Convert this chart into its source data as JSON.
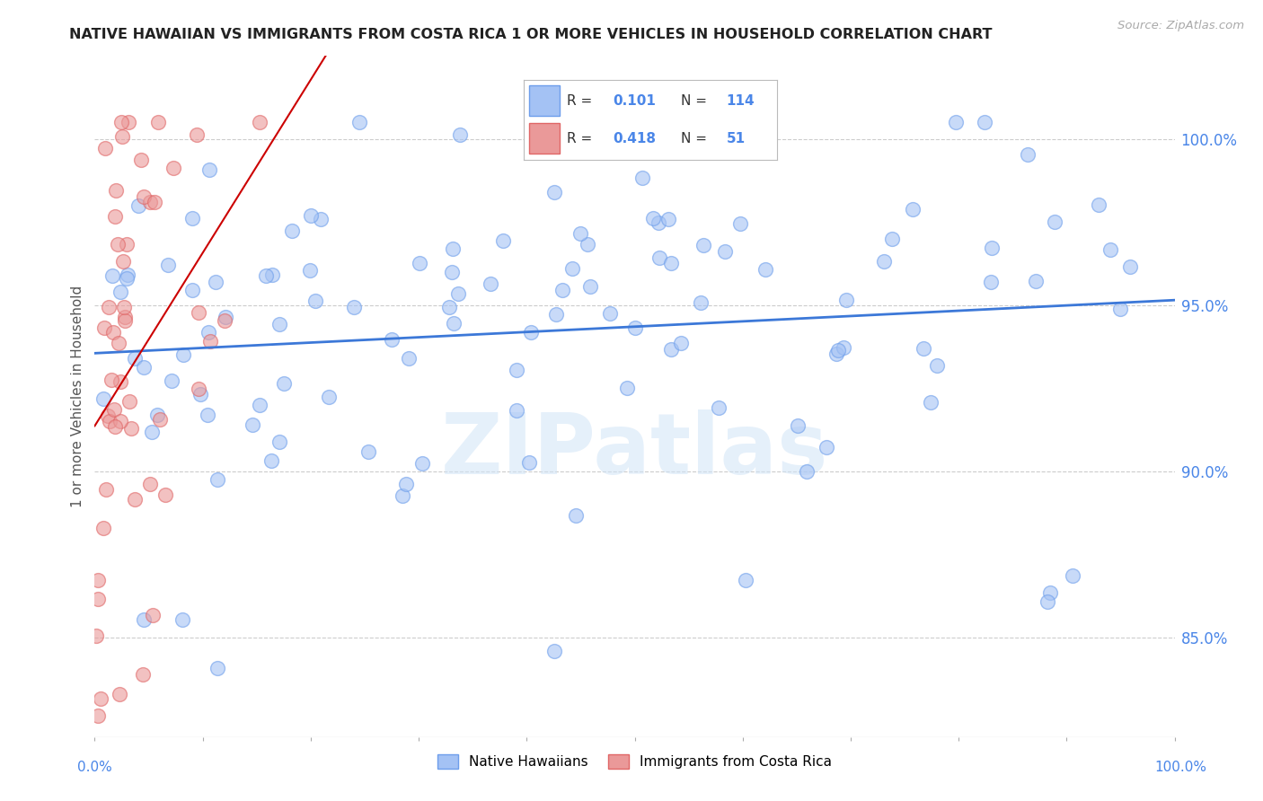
{
  "title": "NATIVE HAWAIIAN VS IMMIGRANTS FROM COSTA RICA 1 OR MORE VEHICLES IN HOUSEHOLD CORRELATION CHART",
  "source": "Source: ZipAtlas.com",
  "ylabel": "1 or more Vehicles in Household",
  "xlim": [
    0.0,
    100.0
  ],
  "ylim": [
    82.0,
    102.0
  ],
  "y_ticks": [
    85.0,
    90.0,
    95.0,
    100.0
  ],
  "y_tick_labels": [
    "85.0%",
    "90.0%",
    "95.0%",
    "100.0%"
  ],
  "blue_R": 0.101,
  "blue_N": 114,
  "pink_R": 0.418,
  "pink_N": 51,
  "blue_color": "#a4c2f4",
  "pink_color": "#ea9999",
  "blue_edge_color": "#6d9eeb",
  "pink_edge_color": "#e06666",
  "blue_line_color": "#3c78d8",
  "pink_line_color": "#cc0000",
  "text_color": "#4a86e8",
  "legend_label_blue": "Native Hawaiians",
  "legend_label_pink": "Immigrants from Costa Rica",
  "watermark": "ZIPatlas",
  "blue_seed": 42,
  "pink_seed": 7
}
